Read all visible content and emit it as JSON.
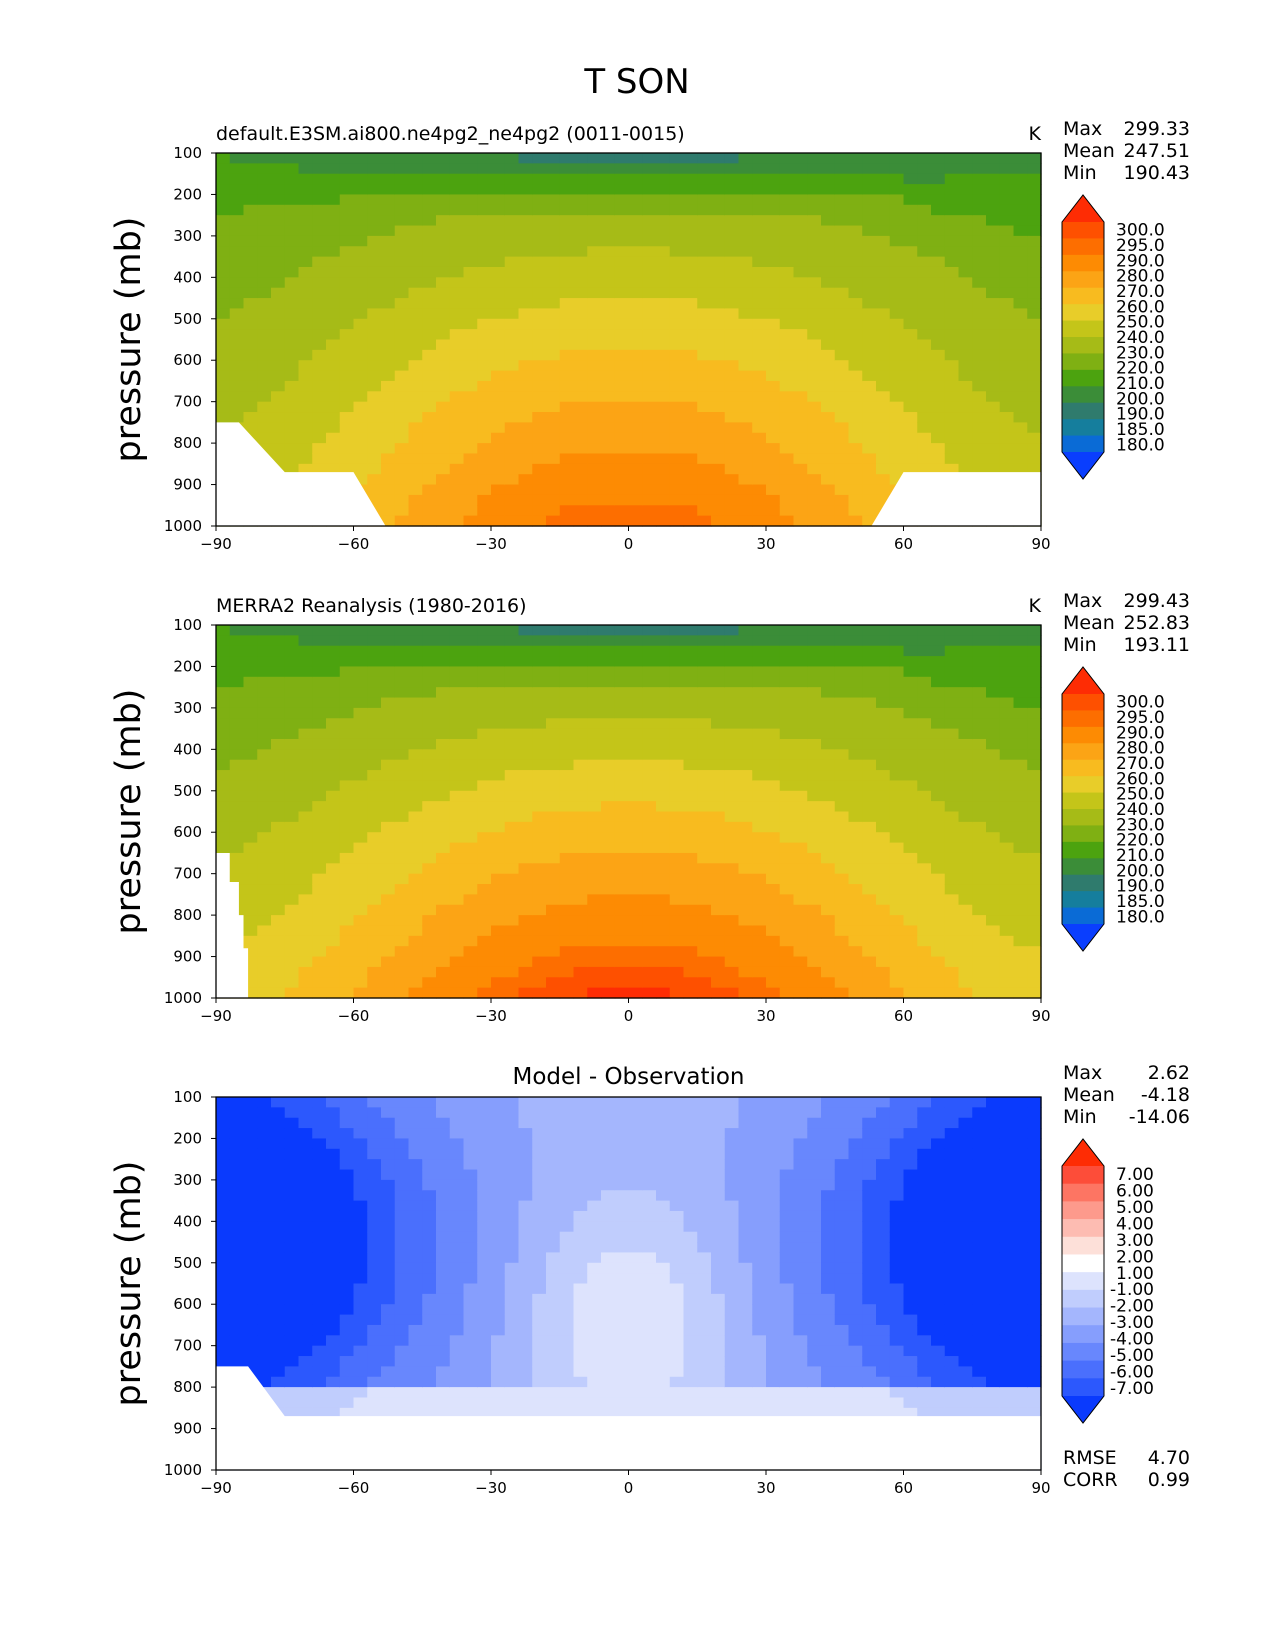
{
  "figure": {
    "title": "T SON",
    "colors": {
      "frame": "#000000",
      "missing": "#ffffff"
    }
  },
  "chart_data": [
    {
      "type": "heatmap",
      "variant": "filled-contour",
      "left_title": "default.E3SM.ai800.ne4pg2_ne4pg2 (0011-0015)",
      "center_title": "",
      "units": "K",
      "ylabel": "pressure (mb)",
      "xlabel": "",
      "x_ticks": [
        "−90",
        "−60",
        "−30",
        "0",
        "30",
        "60",
        "90"
      ],
      "y_ticks": [
        "100",
        "200",
        "300",
        "400",
        "500",
        "600",
        "700",
        "800",
        "900",
        "1000"
      ],
      "xlim": [
        -90,
        90
      ],
      "ylim": [
        1000,
        100
      ],
      "stats": [
        {
          "label": "Max",
          "value": "299.33"
        },
        {
          "label": "Mean",
          "value": "247.51"
        },
        {
          "label": "Min",
          "value": "190.43"
        }
      ],
      "extra_stats": [],
      "field": "temperature",
      "surface": [
        [
          -90,
          750
        ],
        [
          -85,
          750
        ],
        [
          -75,
          870
        ],
        [
          -60,
          870
        ],
        [
          -53,
          1000
        ],
        [
          53,
          1000
        ],
        [
          60,
          870
        ],
        [
          90,
          870
        ]
      ],
      "colorbar": {
        "labels": [
          "300.0",
          "295.0",
          "290.0",
          "280.0",
          "270.0",
          "260.0",
          "250.0",
          "240.0",
          "230.0",
          "220.0",
          "210.0",
          "200.0",
          "190.0",
          "185.0",
          "180.0"
        ],
        "colors": [
          "#fe2c04",
          "#fe5000",
          "#fd6e00",
          "#fd8b03",
          "#fca415",
          "#f8bb1f",
          "#e8cd29",
          "#c4c519",
          "#a6bb17",
          "#7fb013",
          "#4ca30f",
          "#3b8d38",
          "#2f7b6d",
          "#157e9d",
          "#0a6bd6",
          "#0a3efe"
        ],
        "high_arrow_color": "#fe2c04",
        "low_arrow_color": "#0a3efe"
      }
    },
    {
      "type": "heatmap",
      "variant": "filled-contour",
      "left_title": "MERRA2 Reanalysis (1980-2016)",
      "center_title": "",
      "units": "K",
      "ylabel": "pressure (mb)",
      "xlabel": "",
      "x_ticks": [
        "−90",
        "−60",
        "−30",
        "0",
        "30",
        "60",
        "90"
      ],
      "y_ticks": [
        "100",
        "200",
        "300",
        "400",
        "500",
        "600",
        "700",
        "800",
        "900",
        "1000"
      ],
      "xlim": [
        -90,
        90
      ],
      "ylim": [
        1000,
        100
      ],
      "stats": [
        {
          "label": "Max",
          "value": "299.43"
        },
        {
          "label": "Mean",
          "value": "252.83"
        },
        {
          "label": "Min",
          "value": "193.11"
        }
      ],
      "extra_stats": [],
      "field": "temperature",
      "surface": [
        [
          -90,
          650
        ],
        [
          -87,
          650
        ],
        [
          -87,
          720
        ],
        [
          -85,
          720
        ],
        [
          -85,
          800
        ],
        [
          -84,
          800
        ],
        [
          -84,
          880
        ],
        [
          -83,
          880
        ],
        [
          -83,
          1000
        ]
      ],
      "colorbar": {
        "labels": [
          "300.0",
          "295.0",
          "290.0",
          "280.0",
          "270.0",
          "260.0",
          "250.0",
          "240.0",
          "230.0",
          "220.0",
          "210.0",
          "200.0",
          "190.0",
          "185.0",
          "180.0"
        ],
        "colors": [
          "#fe2c04",
          "#fe5000",
          "#fd6e00",
          "#fd8b03",
          "#fca415",
          "#f8bb1f",
          "#e8cd29",
          "#c4c519",
          "#a6bb17",
          "#7fb013",
          "#4ca30f",
          "#3b8d38",
          "#2f7b6d",
          "#157e9d",
          "#0a6bd6",
          "#0a3efe"
        ],
        "high_arrow_color": "#fe2c04",
        "low_arrow_color": "#0a3efe"
      }
    },
    {
      "type": "heatmap",
      "variant": "filled-contour",
      "left_title": "",
      "center_title": "Model - Observation",
      "units": "",
      "ylabel": "pressure (mb)",
      "xlabel": "",
      "x_ticks": [
        "−90",
        "−60",
        "−30",
        "0",
        "30",
        "60",
        "90"
      ],
      "y_ticks": [
        "100",
        "200",
        "300",
        "400",
        "500",
        "600",
        "700",
        "800",
        "900",
        "1000"
      ],
      "xlim": [
        -90,
        90
      ],
      "ylim": [
        1000,
        100
      ],
      "stats": [
        {
          "label": "Max",
          "value": "2.62"
        },
        {
          "label": "Mean",
          "value": "-4.18"
        },
        {
          "label": "Min",
          "value": "-14.06"
        }
      ],
      "extra_stats": [
        {
          "label": "RMSE",
          "value": "4.70"
        },
        {
          "label": "CORR",
          "value": "0.99"
        }
      ],
      "field": "difference",
      "surface": [
        [
          -90,
          750
        ],
        [
          -83,
          750
        ],
        [
          -75,
          870
        ],
        [
          90,
          870
        ]
      ],
      "colorbar": {
        "labels": [
          "7.00",
          "6.00",
          "5.00",
          "4.00",
          "3.00",
          "2.00",
          "1.00",
          "-1.00",
          "-2.00",
          "-3.00",
          "-4.00",
          "-5.00",
          "-6.00",
          "-7.00"
        ],
        "colors": [
          "#fe2c04",
          "#fd4d39",
          "#fd7563",
          "#fd9a8c",
          "#fdbcb2",
          "#fde0d9",
          "#ffffff",
          "#dde3fd",
          "#c0cdfd",
          "#a4b6fd",
          "#869efd",
          "#6887fd",
          "#4a6ffd",
          "#2c58fd",
          "#0a3afd"
        ],
        "high_arrow_color": "#fe2c04",
        "low_arrow_color": "#0a3afd"
      }
    }
  ]
}
